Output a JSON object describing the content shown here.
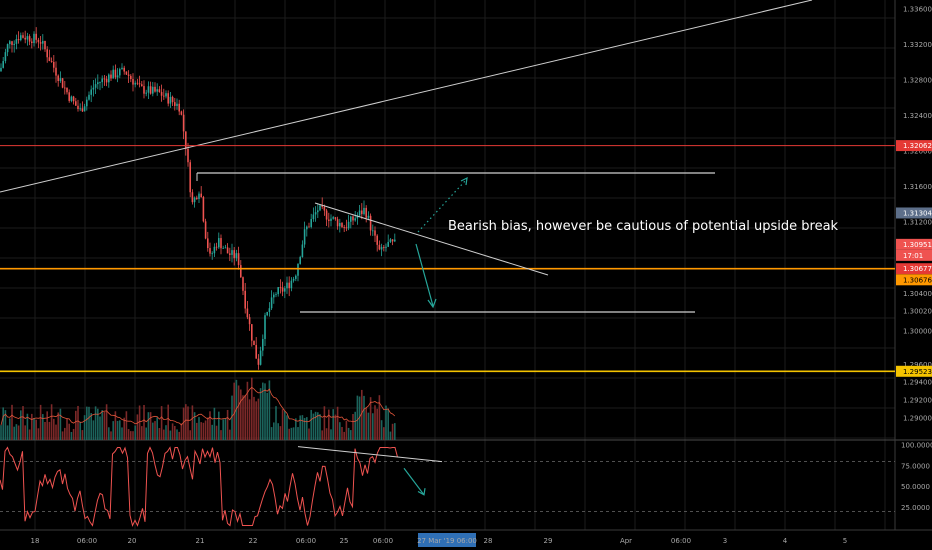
{
  "chart_data": {
    "type": "candlestick",
    "price_axis": {
      "range": [
        1.2875,
        1.337
      ],
      "ticks": [
        "1.33600",
        "1.33200",
        "1.32800",
        "1.32400",
        "1.32000",
        "1.31600",
        "1.31200",
        "1.30800",
        "1.30400",
        "1.30020",
        "1.30000",
        "1.29600",
        "1.29400",
        "1.29200",
        "1.29000"
      ]
    },
    "oscillator_axis": {
      "range": [
        0,
        100
      ],
      "ticks": [
        "100.0000",
        "75.0000",
        "50.0000",
        "25.0000"
      ],
      "levels": [
        80,
        20
      ]
    },
    "time_axis": {
      "ticks": [
        "18",
        "06:00",
        "20",
        "21",
        "22",
        "06:00",
        "25",
        "06:00",
        "27 Mar '19  06:00",
        "28",
        "29",
        "Apr",
        "06:00",
        "3",
        "4",
        "5"
      ],
      "highlight": "27 Mar '19  06:00"
    },
    "price_badges": [
      {
        "value": "1.32062",
        "bg": "#e53935",
        "fg": "#ffffff"
      },
      {
        "value": "1.31304",
        "bg": "#5d6f8a",
        "fg": "#ffffff"
      },
      {
        "value": "1.30951",
        "bg": "#ef5350",
        "fg": "#ffffff"
      },
      {
        "value": "17:01",
        "bg": "#ef5350",
        "fg": "#ffffff"
      },
      {
        "value": "1.30677",
        "bg": "#e53935",
        "fg": "#ffffff"
      },
      {
        "value": "1.30676",
        "bg": "#ff9800",
        "fg": "#000000"
      },
      {
        "value": "1.29523",
        "bg": "#f5c400",
        "fg": "#000000"
      }
    ],
    "levels": [
      {
        "price": 1.32062,
        "color": "#e53935"
      },
      {
        "price": 1.30677,
        "color": "#ff9800"
      },
      {
        "price": 1.29523,
        "color": "#f5c400"
      }
    ],
    "annotation": "Bearish bias, however be cautious of potential upside break",
    "colors": {
      "up": "#26a69a",
      "down": "#ef5350",
      "background": "#000000",
      "grid": "#1c1c1c",
      "volume_ma": "#e0553a",
      "oscillator": "#ef5350"
    }
  }
}
